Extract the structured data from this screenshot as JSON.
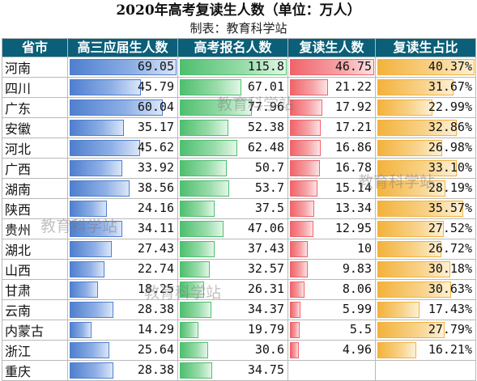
{
  "title": "2020年高考复读生人数（单位：万人）",
  "subtitle": "制表：教育科学站",
  "headers": [
    "省市",
    "高三应届生人数",
    "高考报名人数",
    "复读生人数",
    "复读生占比"
  ],
  "max": {
    "fresh": 69.05,
    "registered": 115.8,
    "repeat": 46.75,
    "ratio": 40.37
  },
  "rows": [
    {
      "province": "河南",
      "fresh": "69.05",
      "registered": "115.8",
      "repeat": "46.75",
      "ratio": "40.37%"
    },
    {
      "province": "四川",
      "fresh": "45.79",
      "registered": "67.01",
      "repeat": "21.22",
      "ratio": "31.67%"
    },
    {
      "province": "广东",
      "fresh": "60.04",
      "registered": "77.96",
      "repeat": "17.92",
      "ratio": "22.99%"
    },
    {
      "province": "安徽",
      "fresh": "35.17",
      "registered": "52.38",
      "repeat": "17.21",
      "ratio": "32.86%"
    },
    {
      "province": "河北",
      "fresh": "45.62",
      "registered": "62.48",
      "repeat": "16.86",
      "ratio": "26.98%"
    },
    {
      "province": "广西",
      "fresh": "33.92",
      "registered": "50.7",
      "repeat": "16.78",
      "ratio": "33.10%"
    },
    {
      "province": "湖南",
      "fresh": "38.56",
      "registered": "53.7",
      "repeat": "15.14",
      "ratio": "28.19%"
    },
    {
      "province": "陕西",
      "fresh": "24.16",
      "registered": "37.5",
      "repeat": "13.34",
      "ratio": "35.57%"
    },
    {
      "province": "贵州",
      "fresh": "34.11",
      "registered": "47.06",
      "repeat": "12.95",
      "ratio": "27.52%"
    },
    {
      "province": "湖北",
      "fresh": "27.43",
      "registered": "37.43",
      "repeat": "10",
      "ratio": "26.72%"
    },
    {
      "province": "山西",
      "fresh": "22.74",
      "registered": "32.57",
      "repeat": "9.83",
      "ratio": "30.18%"
    },
    {
      "province": "甘肃",
      "fresh": "18.25",
      "registered": "26.31",
      "repeat": "8.06",
      "ratio": "30.63%"
    },
    {
      "province": "云南",
      "fresh": "28.38",
      "registered": "34.37",
      "repeat": "5.99",
      "ratio": "17.43%"
    },
    {
      "province": "内蒙古",
      "fresh": "14.29",
      "registered": "19.79",
      "repeat": "5.5",
      "ratio": "27.79%"
    },
    {
      "province": "浙江",
      "fresh": "25.64",
      "registered": "30.6",
      "repeat": "4.96",
      "ratio": "16.21%"
    },
    {
      "province": "重庆",
      "fresh": "28.38",
      "registered": "34.75",
      "repeat": "",
      "ratio": ""
    }
  ],
  "watermarks": [
    "教育科学站",
    "教育科学站",
    "教育科学站",
    "教育科学站"
  ],
  "colors": {
    "header_bg": "#0b5f78",
    "fresh": "#4f7fcf",
    "registered": "#4fbf6f",
    "repeat": "#f0646a",
    "ratio": "#f3b23c"
  }
}
